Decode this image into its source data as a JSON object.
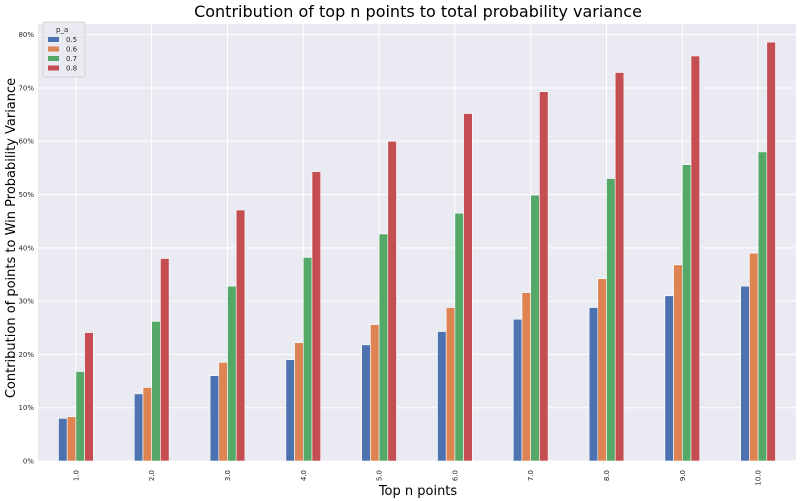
{
  "chart_data": {
    "type": "bar",
    "title": "Contribution of top n points to total probability variance",
    "xlabel": "Top n points",
    "ylabel": "Contribution of points to Win Probability Variance",
    "categories": [
      "1.0",
      "2.0",
      "3.0",
      "4.0",
      "5.0",
      "6.0",
      "7.0",
      "8.0",
      "9.0",
      "10.0"
    ],
    "ylim": [
      0,
      0.82
    ],
    "yticks": [
      0,
      0.1,
      0.2,
      0.3,
      0.4,
      0.5,
      0.6,
      0.7,
      0.8
    ],
    "ytick_labels": [
      "0%",
      "10%",
      "20%",
      "30%",
      "40%",
      "50%",
      "60%",
      "70%",
      "80%"
    ],
    "grid": true,
    "legend": {
      "title": "p_a",
      "placement": "top-left"
    },
    "series": [
      {
        "name": "0.5",
        "color": "#4c72b0",
        "values": [
          0.08,
          0.126,
          0.16,
          0.19,
          0.218,
          0.243,
          0.266,
          0.288,
          0.31,
          0.328
        ]
      },
      {
        "name": "0.6",
        "color": "#dd8452",
        "values": [
          0.083,
          0.138,
          0.185,
          0.222,
          0.256,
          0.288,
          0.316,
          0.342,
          0.368,
          0.39
        ]
      },
      {
        "name": "0.7",
        "color": "#55a868",
        "values": [
          0.168,
          0.262,
          0.328,
          0.382,
          0.426,
          0.465,
          0.499,
          0.53,
          0.556,
          0.58
        ]
      },
      {
        "name": "0.8",
        "color": "#c44e52",
        "values": [
          0.241,
          0.38,
          0.471,
          0.543,
          0.6,
          0.652,
          0.693,
          0.729,
          0.76,
          0.786
        ]
      }
    ],
    "background_color": "#eaeaf2",
    "grid_color": "#ffffff"
  }
}
